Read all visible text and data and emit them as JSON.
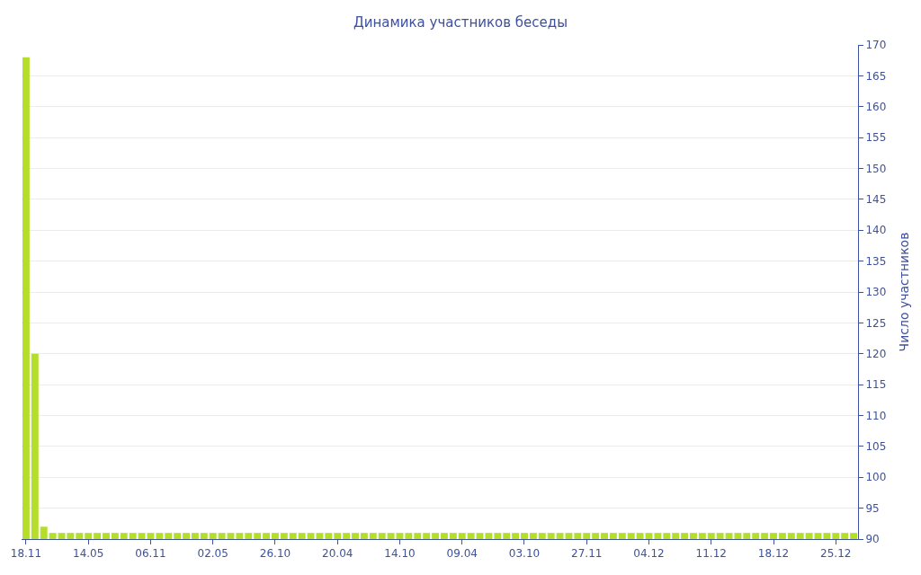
{
  "chart_data": {
    "type": "bar",
    "title": "Динамика участников беседы",
    "ylabel": "Число участников",
    "categories": [
      "18.11",
      null,
      null,
      null,
      null,
      null,
      null,
      "14.05",
      null,
      null,
      null,
      null,
      null,
      null,
      "06.11",
      null,
      null,
      null,
      null,
      null,
      null,
      "02.05",
      null,
      null,
      null,
      null,
      null,
      null,
      "26.10",
      null,
      null,
      null,
      null,
      null,
      null,
      "20.04",
      null,
      null,
      null,
      null,
      null,
      null,
      "14.10",
      null,
      null,
      null,
      null,
      null,
      null,
      "09.04",
      null,
      null,
      null,
      null,
      null,
      null,
      "03.10",
      null,
      null,
      null,
      null,
      null,
      null,
      "27.11",
      null,
      null,
      null,
      null,
      null,
      null,
      "04.12",
      null,
      null,
      null,
      null,
      null,
      null,
      "11.12",
      null,
      null,
      null,
      null,
      null,
      null,
      "18.12",
      null,
      null,
      null,
      null,
      null,
      null,
      "25.12",
      null,
      null
    ],
    "values": [
      168,
      120,
      92,
      91,
      91,
      91,
      91,
      91,
      91,
      91,
      91,
      91,
      91,
      91,
      91,
      91,
      91,
      91,
      91,
      91,
      91,
      91,
      91,
      91,
      91,
      91,
      91,
      91,
      91,
      91,
      91,
      91,
      91,
      91,
      91,
      91,
      91,
      91,
      91,
      91,
      91,
      91,
      91,
      91,
      91,
      91,
      91,
      91,
      91,
      91,
      91,
      91,
      91,
      91,
      91,
      91,
      91,
      91,
      91,
      91,
      91,
      91,
      91,
      91,
      91,
      91,
      91,
      91,
      91,
      91,
      91,
      91,
      91,
      91,
      91,
      91,
      91,
      91,
      91,
      91,
      91,
      91,
      91,
      91,
      91,
      91,
      91,
      91,
      91,
      91,
      91,
      91,
      91,
      91
    ],
    "color": "#b5de2b",
    "ylim": [
      90,
      170
    ],
    "yticks": [
      90,
      95,
      100,
      105,
      110,
      115,
      120,
      125,
      130,
      135,
      140,
      145,
      150,
      155,
      160,
      165,
      170
    ],
    "grid": "y",
    "legend": false
  }
}
